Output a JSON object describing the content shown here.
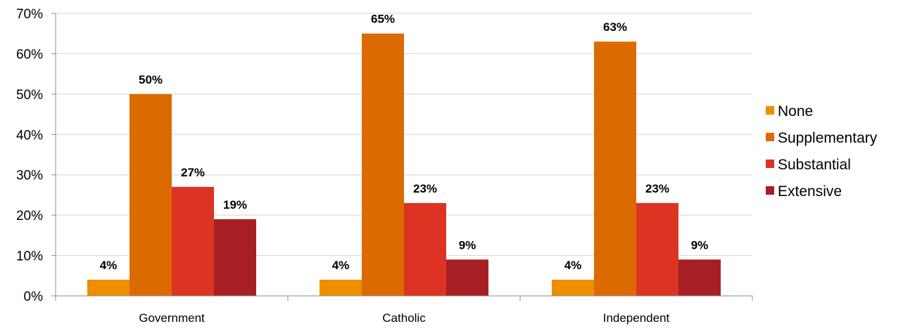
{
  "chart_data": {
    "type": "bar",
    "categories": [
      "Government",
      "Catholic",
      "Independent"
    ],
    "series": [
      {
        "name": "None",
        "values": [
          4,
          4,
          4
        ],
        "labels": [
          "4%",
          "4%",
          "4%"
        ],
        "color": "#ee8e00"
      },
      {
        "name": "Supplementary",
        "values": [
          50,
          65,
          63
        ],
        "labels": [
          "50%",
          "65%",
          "63%"
        ],
        "color": "#db6b00"
      },
      {
        "name": "Substantial",
        "values": [
          27,
          23,
          23
        ],
        "labels": [
          "27%",
          "23%",
          "23%"
        ],
        "color": "#dd3322"
      },
      {
        "name": "Extensive",
        "values": [
          19,
          9,
          9
        ],
        "labels": [
          "19%",
          "9%",
          "9%"
        ],
        "color": "#a61f22"
      }
    ],
    "ylim": [
      0,
      70
    ],
    "yticks": [
      0,
      10,
      20,
      30,
      40,
      50,
      60,
      70
    ],
    "ytick_labels": [
      "0%",
      "10%",
      "20%",
      "30%",
      "40%",
      "50%",
      "60%",
      "70%"
    ],
    "grid": true,
    "legend_position": "right",
    "title": "",
    "xlabel": "",
    "ylabel": ""
  }
}
